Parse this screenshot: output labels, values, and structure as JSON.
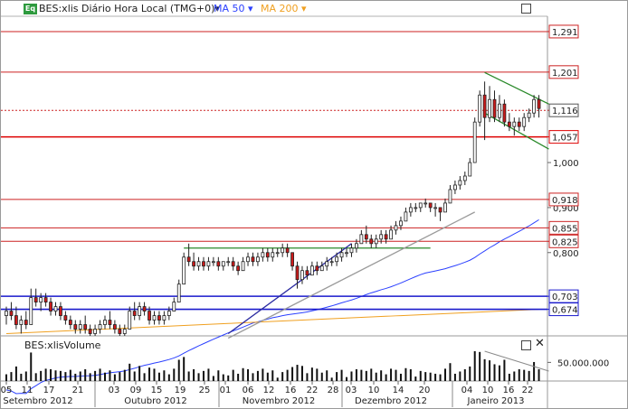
{
  "header": {
    "icon_label": "Eq",
    "instrument": "BES:xlis Diário Hora Local (TMG+0)"
  },
  "volume_panel": {
    "title": "BES:xlisVolume"
  },
  "chart_data": {
    "type": "candlestick",
    "y_axis_ticks": [
      {
        "label": "1,000",
        "value": 1.0
      },
      {
        "label": "0,900",
        "value": 0.9
      },
      {
        "label": "0,800",
        "value": 0.8
      }
    ],
    "ylim": [
      0.615,
      1.325
    ],
    "horizontal_lines": [
      {
        "label": "1,291",
        "value": 1.291,
        "color": "#cc2222"
      },
      {
        "label": "1,201",
        "value": 1.201,
        "color": "#cc2222"
      },
      {
        "label": "1,116",
        "value": 1.116,
        "color": "#cc2222",
        "style": "dotted",
        "current": true
      },
      {
        "label": "1,057",
        "value": 1.057,
        "color": "#dd0000"
      },
      {
        "label": "0,918",
        "value": 0.918,
        "color": "#cc2222"
      },
      {
        "label": "0,855",
        "value": 0.855,
        "color": "#cc2222"
      },
      {
        "label": "0,825",
        "value": 0.825,
        "color": "#cc2222"
      },
      {
        "label": "0,703",
        "value": 0.703,
        "color": "#1a1acc"
      },
      {
        "label": "0,674",
        "value": 0.674,
        "color": "#1a1acc"
      }
    ],
    "x_day_ticks": [
      "05",
      "11",
      "17",
      "21",
      "03",
      "09",
      "15",
      "19",
      "25",
      "01",
      "06",
      "12",
      "16",
      "22",
      "28",
      "03",
      "10",
      "14",
      "20",
      "04",
      "10",
      "16",
      "22"
    ],
    "x_month_labels": [
      "Setembro 2012",
      "Outubro 2012",
      "Novembro 2012",
      "Dezembro 2012",
      "Janeiro 2013"
    ],
    "series": [
      {
        "name": "BES:xlis",
        "note": "daily OHLC, Sept 2012 - Jan 2013",
        "ohlc": [
          [
            0.66,
            0.68,
            0.64,
            0.67
          ],
          [
            0.67,
            0.69,
            0.65,
            0.66
          ],
          [
            0.66,
            0.68,
            0.63,
            0.64
          ],
          [
            0.64,
            0.66,
            0.62,
            0.65
          ],
          [
            0.65,
            0.67,
            0.63,
            0.64
          ],
          [
            0.64,
            0.72,
            0.64,
            0.7
          ],
          [
            0.7,
            0.72,
            0.68,
            0.69
          ],
          [
            0.69,
            0.71,
            0.67,
            0.7
          ],
          [
            0.7,
            0.71,
            0.68,
            0.69
          ],
          [
            0.69,
            0.7,
            0.66,
            0.67
          ],
          [
            0.67,
            0.69,
            0.66,
            0.68
          ],
          [
            0.68,
            0.69,
            0.65,
            0.66
          ],
          [
            0.66,
            0.67,
            0.64,
            0.65
          ],
          [
            0.65,
            0.66,
            0.63,
            0.64
          ],
          [
            0.64,
            0.65,
            0.62,
            0.63
          ],
          [
            0.63,
            0.65,
            0.62,
            0.64
          ],
          [
            0.64,
            0.66,
            0.62,
            0.63
          ],
          [
            0.63,
            0.64,
            0.61,
            0.62
          ],
          [
            0.62,
            0.64,
            0.61,
            0.63
          ],
          [
            0.63,
            0.65,
            0.62,
            0.64
          ],
          [
            0.64,
            0.66,
            0.63,
            0.65
          ],
          [
            0.65,
            0.67,
            0.63,
            0.64
          ],
          [
            0.64,
            0.65,
            0.62,
            0.63
          ],
          [
            0.63,
            0.64,
            0.61,
            0.62
          ],
          [
            0.62,
            0.64,
            0.61,
            0.63
          ],
          [
            0.63,
            0.68,
            0.63,
            0.67
          ],
          [
            0.67,
            0.69,
            0.65,
            0.66
          ],
          [
            0.66,
            0.69,
            0.65,
            0.68
          ],
          [
            0.68,
            0.69,
            0.66,
            0.67
          ],
          [
            0.67,
            0.68,
            0.64,
            0.65
          ],
          [
            0.65,
            0.67,
            0.64,
            0.66
          ],
          [
            0.66,
            0.67,
            0.64,
            0.65
          ],
          [
            0.65,
            0.67,
            0.64,
            0.66
          ],
          [
            0.66,
            0.68,
            0.65,
            0.67
          ],
          [
            0.67,
            0.7,
            0.67,
            0.69
          ],
          [
            0.69,
            0.74,
            0.69,
            0.73
          ],
          [
            0.73,
            0.8,
            0.73,
            0.79
          ],
          [
            0.79,
            0.82,
            0.77,
            0.78
          ],
          [
            0.78,
            0.8,
            0.76,
            0.77
          ],
          [
            0.77,
            0.79,
            0.76,
            0.78
          ],
          [
            0.78,
            0.79,
            0.76,
            0.77
          ],
          [
            0.77,
            0.79,
            0.76,
            0.78
          ],
          [
            0.78,
            0.79,
            0.77,
            0.78
          ],
          [
            0.78,
            0.79,
            0.76,
            0.77
          ],
          [
            0.77,
            0.78,
            0.76,
            0.78
          ],
          [
            0.78,
            0.79,
            0.77,
            0.78
          ],
          [
            0.78,
            0.79,
            0.76,
            0.77
          ],
          [
            0.77,
            0.78,
            0.75,
            0.76
          ],
          [
            0.76,
            0.79,
            0.76,
            0.78
          ],
          [
            0.78,
            0.8,
            0.77,
            0.79
          ],
          [
            0.79,
            0.8,
            0.77,
            0.78
          ],
          [
            0.78,
            0.8,
            0.77,
            0.79
          ],
          [
            0.79,
            0.81,
            0.78,
            0.8
          ],
          [
            0.8,
            0.81,
            0.78,
            0.79
          ],
          [
            0.79,
            0.81,
            0.78,
            0.8
          ],
          [
            0.8,
            0.81,
            0.79,
            0.8
          ],
          [
            0.8,
            0.82,
            0.79,
            0.81
          ],
          [
            0.81,
            0.82,
            0.79,
            0.8
          ],
          [
            0.8,
            0.8,
            0.76,
            0.77
          ],
          [
            0.77,
            0.78,
            0.72,
            0.74
          ],
          [
            0.74,
            0.77,
            0.73,
            0.76
          ],
          [
            0.76,
            0.77,
            0.74,
            0.75
          ],
          [
            0.75,
            0.78,
            0.75,
            0.77
          ],
          [
            0.77,
            0.78,
            0.75,
            0.76
          ],
          [
            0.76,
            0.78,
            0.76,
            0.77
          ],
          [
            0.77,
            0.79,
            0.76,
            0.78
          ],
          [
            0.78,
            0.79,
            0.77,
            0.78
          ],
          [
            0.78,
            0.8,
            0.77,
            0.79
          ],
          [
            0.79,
            0.81,
            0.78,
            0.8
          ],
          [
            0.8,
            0.81,
            0.79,
            0.8
          ],
          [
            0.8,
            0.82,
            0.79,
            0.81
          ],
          [
            0.81,
            0.83,
            0.8,
            0.82
          ],
          [
            0.82,
            0.85,
            0.82,
            0.84
          ],
          [
            0.84,
            0.86,
            0.82,
            0.83
          ],
          [
            0.83,
            0.84,
            0.81,
            0.82
          ],
          [
            0.82,
            0.84,
            0.81,
            0.83
          ],
          [
            0.83,
            0.85,
            0.82,
            0.84
          ],
          [
            0.84,
            0.85,
            0.82,
            0.83
          ],
          [
            0.83,
            0.86,
            0.83,
            0.85
          ],
          [
            0.85,
            0.87,
            0.84,
            0.86
          ],
          [
            0.86,
            0.88,
            0.85,
            0.87
          ],
          [
            0.87,
            0.9,
            0.87,
            0.89
          ],
          [
            0.89,
            0.91,
            0.88,
            0.9
          ],
          [
            0.9,
            0.91,
            0.89,
            0.9
          ],
          [
            0.9,
            0.91,
            0.89,
            0.91
          ],
          [
            0.91,
            0.92,
            0.9,
            0.91
          ],
          [
            0.91,
            0.91,
            0.89,
            0.9
          ],
          [
            0.9,
            0.91,
            0.88,
            0.9
          ],
          [
            0.9,
            0.9,
            0.87,
            0.89
          ],
          [
            0.89,
            0.92,
            0.89,
            0.91
          ],
          [
            0.91,
            0.95,
            0.91,
            0.94
          ],
          [
            0.94,
            0.96,
            0.93,
            0.95
          ],
          [
            0.95,
            0.97,
            0.94,
            0.96
          ],
          [
            0.96,
            0.98,
            0.95,
            0.97
          ],
          [
            0.97,
            1.01,
            0.97,
            1.0
          ],
          [
            1.0,
            1.1,
            1.0,
            1.09
          ],
          [
            1.09,
            1.16,
            1.08,
            1.15
          ],
          [
            1.15,
            1.18,
            1.05,
            1.1
          ],
          [
            1.1,
            1.17,
            1.09,
            1.14
          ],
          [
            1.14,
            1.16,
            1.09,
            1.1
          ],
          [
            1.1,
            1.15,
            1.09,
            1.13
          ],
          [
            1.13,
            1.14,
            1.08,
            1.09
          ],
          [
            1.09,
            1.11,
            1.07,
            1.08
          ],
          [
            1.08,
            1.1,
            1.06,
            1.09
          ],
          [
            1.09,
            1.1,
            1.07,
            1.08
          ],
          [
            1.08,
            1.11,
            1.07,
            1.1
          ],
          [
            1.1,
            1.12,
            1.09,
            1.11
          ],
          [
            1.11,
            1.15,
            1.1,
            1.14
          ],
          [
            1.14,
            1.15,
            1.1,
            1.12
          ]
        ]
      },
      {
        "name": "MA 50",
        "color": "#2b40ff"
      },
      {
        "name": "MA 200",
        "color": "#f0a020"
      }
    ],
    "volume": {
      "series_name": "BES:xlisVolume",
      "tick_label": "50.000.000",
      "tick_value": 50000000,
      "ylim": [
        0,
        80000000
      ]
    },
    "trend_lines": [
      {
        "color": "#2a8a2a",
        "from": {
          "index": 36,
          "price": 0.81
        },
        "to": {
          "index": 86,
          "price": 0.81
        }
      },
      {
        "color": "#2a8a2a",
        "from": {
          "index": 97,
          "price": 1.2
        },
        "to": {
          "index": 110,
          "price": 1.13
        }
      },
      {
        "color": "#2a8a2a",
        "from": {
          "index": 97,
          "price": 1.11
        },
        "to": {
          "index": 110,
          "price": 1.03
        }
      },
      {
        "color": "#9a9a9a",
        "from": {
          "index": 45,
          "price": 0.61
        },
        "to": {
          "index": 95,
          "price": 0.89
        }
      },
      {
        "color": "#2a2aa0",
        "from": {
          "index": 45,
          "price": 0.62
        },
        "to": {
          "index": 70,
          "price": 0.82
        }
      }
    ]
  }
}
